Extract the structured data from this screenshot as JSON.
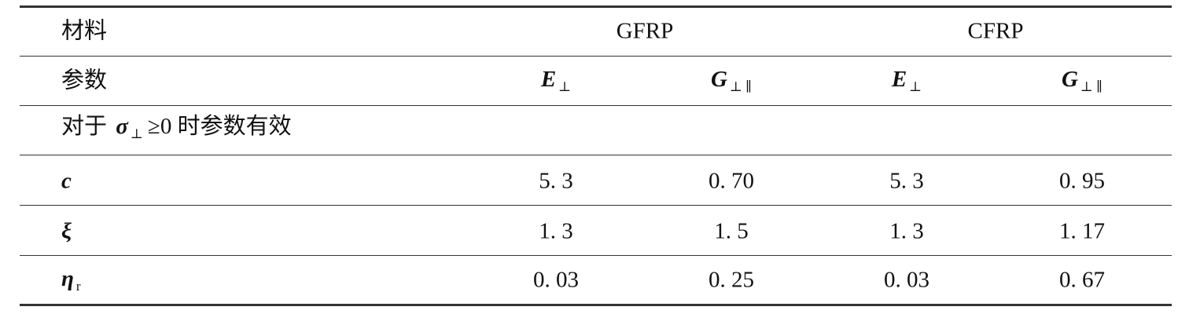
{
  "table": {
    "header": {
      "label": "材料",
      "groups": [
        "GFRP",
        "CFRP"
      ]
    },
    "params": {
      "label": "参数",
      "columns": [
        {
          "symbol": "E",
          "sub": "⊥"
        },
        {
          "symbol": "G",
          "sub": "⊥ ∥"
        },
        {
          "symbol": "E",
          "sub": "⊥"
        },
        {
          "symbol": "G",
          "sub": "⊥ ∥"
        }
      ]
    },
    "note": {
      "before": "对于",
      "symbol": "σ",
      "sub": "⊥",
      "after": "≥0 时参数有效"
    },
    "rows": [
      {
        "symbol": "c",
        "cells": [
          "5. 3",
          "0. 70",
          "5. 3",
          "0. 95"
        ]
      },
      {
        "symbol": "ξ",
        "cells": [
          "1. 3",
          "1. 5",
          "1. 3",
          "1. 17"
        ]
      },
      {
        "symbol": "η",
        "sub": "r",
        "cells": [
          "0. 03",
          "0. 25",
          "0. 03",
          "0. 67"
        ]
      }
    ]
  }
}
